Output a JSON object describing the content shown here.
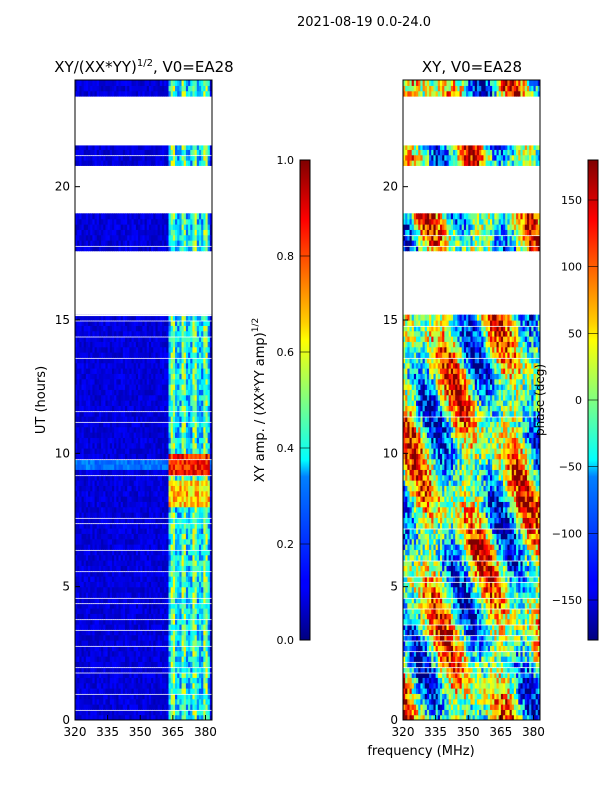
{
  "suptitle": "2021-08-19 0.0-24.0",
  "xlabel": "frequency (MHz)",
  "chart_data": [
    {
      "type": "heatmap",
      "title_main": "XY/(XX*YY)",
      "title_sup": "1/2",
      "title_tail": ", V0=EA28",
      "ylabel": "UT (hours)",
      "x_range": [
        320,
        383
      ],
      "y_range": [
        0,
        24
      ],
      "x_ticks": [
        "320",
        "335",
        "350",
        "365",
        "380"
      ],
      "x_tick_values": [
        320,
        335,
        350,
        365,
        380
      ],
      "y_ticks": [
        "0",
        "5",
        "10",
        "15",
        "20"
      ],
      "y_tick_values": [
        0,
        5,
        10,
        15,
        20
      ],
      "colormap": "jet",
      "colorbar": {
        "label_main": "XY amp. / (XX*YY amp)",
        "label_sup": "1/2",
        "range": [
          0.0,
          1.0
        ],
        "ticks": [
          "0.0",
          "0.2",
          "0.4",
          "0.6",
          "0.8",
          "1.0"
        ],
        "tick_values": [
          0.0,
          0.2,
          0.4,
          0.6,
          0.8,
          1.0
        ]
      },
      "data_gaps_ut_hours": [
        [
          23.4,
          21.6
        ],
        [
          20.8,
          19.1
        ],
        [
          17.7,
          15.2
        ]
      ],
      "notes": "Mostly low normalized amplitude (~0.05); elevated values (0.5-0.9) in channels near 363-380 MHz, strongest around 9.5 h UT."
    },
    {
      "type": "heatmap",
      "title": "XY, V0=EA28",
      "x_range": [
        320,
        383
      ],
      "y_range": [
        0,
        24
      ],
      "x_ticks": [
        "320",
        "335",
        "350",
        "365",
        "380"
      ],
      "x_tick_values": [
        320,
        335,
        350,
        365,
        380
      ],
      "y_ticks": [
        "0",
        "5",
        "10",
        "15",
        "20"
      ],
      "y_tick_values": [
        0,
        5,
        10,
        15,
        20
      ],
      "colormap": "jet",
      "colorbar": {
        "label": "phase (deg)",
        "range": [
          -180,
          180
        ],
        "ticks": [
          "150",
          "100",
          "50",
          "0",
          "−50",
          "−100",
          "−150"
        ],
        "tick_values": [
          150,
          100,
          50,
          0,
          -50,
          -100,
          -150
        ]
      },
      "data_gaps_ut_hours": [
        [
          23.4,
          21.6
        ],
        [
          20.8,
          19.1
        ],
        [
          17.7,
          15.2
        ]
      ],
      "notes": "XY phase spans full -180 to 180 deg range with noisy structure across all channels."
    }
  ]
}
